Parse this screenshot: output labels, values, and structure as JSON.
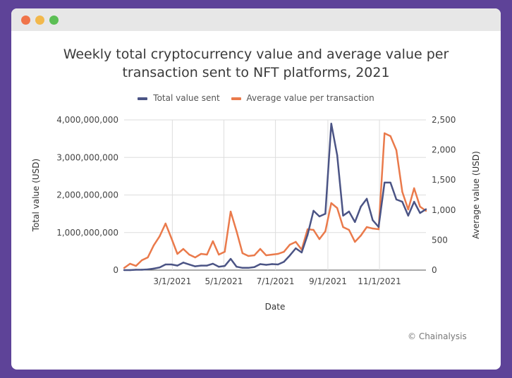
{
  "window": {
    "dots": [
      "#f0744a",
      "#f2b84c",
      "#5cbf55"
    ]
  },
  "chart_data": {
    "type": "line",
    "title": "Weekly total cryptocurrency value and average value per transaction sent to NFT platforms, 2021",
    "title_lines": [
      "Weekly total cryptocurrency value and average value per",
      "transaction sent to NFT platforms, 2021"
    ],
    "xlabel": "Date",
    "ylabel_left": "Total value (USD)",
    "ylabel_right": "Average value (USD)",
    "legend_position": "top",
    "grid": true,
    "x_start": "2021-01-03",
    "x_interval": "weekly",
    "x_ticks": [
      "3/1/2021",
      "5/1/2021",
      "7/1/2021",
      "9/1/2021",
      "11/1/2021"
    ],
    "x_tick_dates": [
      "2021-03-01",
      "2021-05-01",
      "2021-07-01",
      "2021-09-01",
      "2021-11-01"
    ],
    "ylim_left": [
      0,
      4000000000
    ],
    "yticks_left": [
      "0",
      "1,000,000,000",
      "2,000,000,000",
      "3,000,000,000",
      "4,000,000,000"
    ],
    "ylim_right": [
      0,
      2500
    ],
    "yticks_right": [
      "0",
      "500",
      "1,000",
      "1,500",
      "2,000",
      "2,500"
    ],
    "series": [
      {
        "name": "Total value sent",
        "axis": "left",
        "color": "#4b5485",
        "values": [
          0,
          0,
          10000000,
          10000000,
          20000000,
          40000000,
          70000000,
          150000000,
          150000000,
          120000000,
          200000000,
          150000000,
          100000000,
          120000000,
          120000000,
          170000000,
          90000000,
          110000000,
          300000000,
          90000000,
          60000000,
          60000000,
          80000000,
          160000000,
          140000000,
          160000000,
          150000000,
          220000000,
          390000000,
          580000000,
          470000000,
          940000000,
          1580000000,
          1430000000,
          1500000000,
          3900000000,
          3060000000,
          1450000000,
          1560000000,
          1280000000,
          1690000000,
          1900000000,
          1330000000,
          1150000000,
          2330000000,
          2330000000,
          1880000000,
          1820000000,
          1450000000,
          1820000000,
          1520000000,
          1620000000
        ]
      },
      {
        "name": "Average value per transaction",
        "axis": "right",
        "color": "#ea7a4b",
        "values": [
          35,
          106,
          70,
          164,
          211,
          411,
          563,
          775,
          528,
          270,
          352,
          258,
          211,
          270,
          258,
          481,
          258,
          305,
          974,
          646,
          282,
          235,
          246,
          352,
          246,
          258,
          270,
          305,
          423,
          470,
          340,
          680,
          669,
          516,
          646,
          1115,
          1033,
          716,
          669,
          470,
          575,
          716,
          692,
          680,
          2277,
          2230,
          1995,
          1303,
          1009,
          1362,
          1056,
          986
        ]
      }
    ]
  },
  "credit": "© Chainalysis"
}
